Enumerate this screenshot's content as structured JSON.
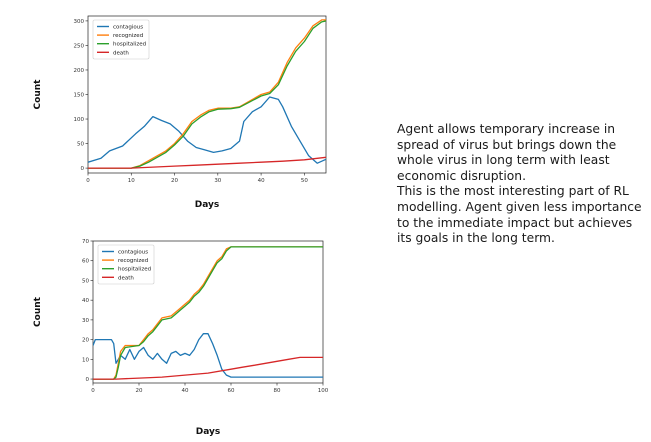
{
  "chart_data": [
    {
      "type": "line",
      "xlabel": "Days",
      "ylabel": "Count",
      "xlim": [
        0,
        55
      ],
      "ylim": [
        -10,
        310
      ],
      "xticks": [
        0,
        10,
        20,
        30,
        40,
        50
      ],
      "yticks": [
        0,
        50,
        100,
        150,
        200,
        250,
        300
      ],
      "legend_position": "top-left",
      "grid": false,
      "series": [
        {
          "name": "contagious",
          "color": "#1f77b4",
          "x": [
            0,
            3,
            5,
            8,
            11,
            13,
            15,
            17,
            19,
            21,
            23,
            25,
            27,
            29,
            31,
            33,
            35,
            36,
            38,
            40,
            42,
            44,
            45,
            47,
            49,
            51,
            53,
            55
          ],
          "y": [
            12,
            20,
            35,
            45,
            70,
            85,
            105,
            97,
            90,
            75,
            55,
            42,
            37,
            32,
            35,
            40,
            55,
            95,
            115,
            125,
            145,
            140,
            125,
            85,
            55,
            25,
            10,
            18
          ]
        },
        {
          "name": "recognized",
          "color": "#ff7f0e",
          "x": [
            0,
            10,
            12,
            14,
            16,
            18,
            20,
            22,
            24,
            26,
            28,
            30,
            33,
            35,
            37,
            40,
            42,
            44,
            46,
            48,
            50,
            52,
            54,
            55
          ],
          "y": [
            0,
            0,
            5,
            15,
            25,
            35,
            50,
            70,
            95,
            108,
            118,
            122,
            122,
            125,
            135,
            150,
            155,
            175,
            215,
            245,
            265,
            290,
            302,
            302
          ]
        },
        {
          "name": "hospitalized",
          "color": "#2ca02c",
          "x": [
            0,
            10,
            12,
            14,
            16,
            18,
            20,
            22,
            24,
            26,
            28,
            30,
            33,
            35,
            37,
            40,
            42,
            44,
            46,
            48,
            50,
            52,
            54,
            55
          ],
          "y": [
            0,
            0,
            4,
            12,
            22,
            32,
            47,
            65,
            90,
            104,
            115,
            120,
            121,
            124,
            133,
            147,
            152,
            170,
            208,
            238,
            258,
            285,
            298,
            300
          ]
        },
        {
          "name": "death",
          "color": "#d62728",
          "x": [
            0,
            10,
            15,
            20,
            25,
            30,
            35,
            40,
            45,
            50,
            55
          ],
          "y": [
            0,
            0,
            2,
            4,
            6,
            8,
            10,
            12,
            14,
            17,
            22
          ]
        }
      ]
    },
    {
      "type": "line",
      "xlabel": "Days",
      "ylabel": "Count",
      "xlim": [
        0,
        100
      ],
      "ylim": [
        -2,
        70
      ],
      "xticks": [
        0,
        20,
        40,
        60,
        80,
        100
      ],
      "yticks": [
        0,
        10,
        20,
        30,
        40,
        50,
        60,
        70
      ],
      "legend_position": "top-left",
      "grid": false,
      "series": [
        {
          "name": "contagious",
          "color": "#1f77b4",
          "x": [
            0,
            1,
            2,
            8,
            9,
            10,
            12,
            14,
            16,
            18,
            20,
            22,
            24,
            26,
            28,
            30,
            32,
            34,
            36,
            38,
            40,
            42,
            44,
            46,
            48,
            50,
            52,
            54,
            56,
            58,
            60,
            65,
            100
          ],
          "y": [
            17,
            20,
            20,
            20,
            18,
            8,
            12,
            10,
            15,
            10,
            14,
            16,
            12,
            10,
            13,
            10,
            8,
            13,
            14,
            12,
            13,
            12,
            15,
            20,
            23,
            23,
            18,
            12,
            5,
            2,
            1,
            1,
            1
          ]
        },
        {
          "name": "recognized",
          "color": "#ff7f0e",
          "x": [
            0,
            9,
            10,
            11,
            12,
            14,
            20,
            22,
            24,
            26,
            28,
            30,
            34,
            36,
            38,
            40,
            42,
            44,
            46,
            48,
            50,
            52,
            54,
            56,
            58,
            60,
            100
          ],
          "y": [
            0,
            0,
            2,
            8,
            14,
            17,
            17,
            20,
            23,
            25,
            28,
            31,
            32,
            34,
            36,
            38,
            40,
            43,
            45,
            48,
            52,
            56,
            60,
            62,
            66,
            67,
            67
          ]
        },
        {
          "name": "hospitalized",
          "color": "#2ca02c",
          "x": [
            0,
            9,
            10,
            11,
            12,
            14,
            20,
            22,
            24,
            26,
            28,
            30,
            34,
            36,
            38,
            40,
            42,
            44,
            46,
            48,
            50,
            52,
            54,
            56,
            58,
            60,
            100
          ],
          "y": [
            0,
            0,
            1,
            6,
            12,
            16,
            17,
            19,
            22,
            24,
            27,
            30,
            31,
            33,
            35,
            37,
            39,
            42,
            44,
            47,
            51,
            55,
            59,
            61,
            65,
            67,
            67
          ]
        },
        {
          "name": "death",
          "color": "#d62728",
          "x": [
            0,
            10,
            20,
            30,
            40,
            50,
            60,
            65,
            70,
            75,
            80,
            85,
            90,
            100
          ],
          "y": [
            0,
            0,
            0.5,
            1,
            2,
            3,
            5,
            6,
            7,
            8,
            9,
            10,
            11,
            11
          ]
        }
      ]
    }
  ],
  "description": [
    "Agent allows temporary increase in spread of virus but brings down the whole virus in long term with least economic disruption.",
    "This is the most interesting part of RL modelling. Agent given less importance to the immediate impact but achieves its goals in the long term."
  ]
}
